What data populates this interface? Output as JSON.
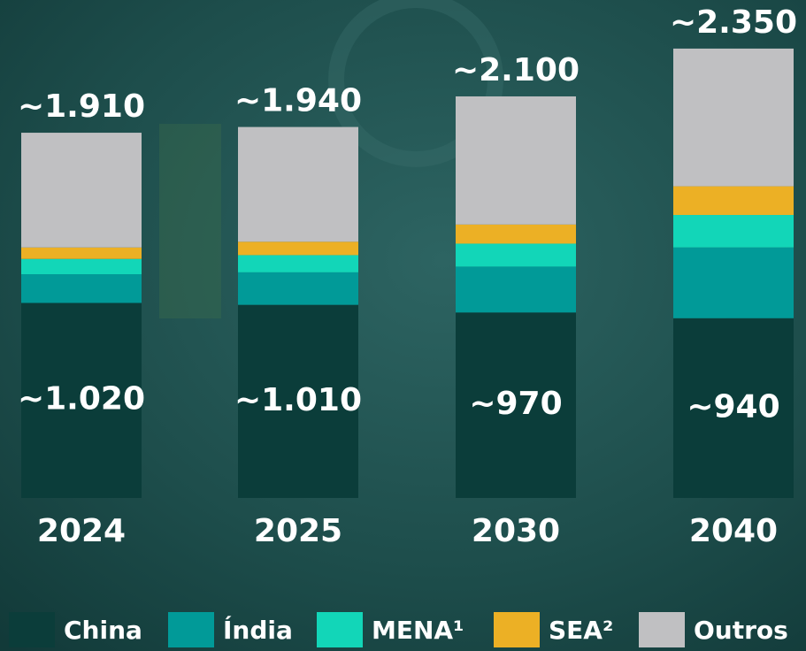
{
  "chart_data": {
    "type": "stacked-bar",
    "categories": [
      "2024",
      "2025",
      "2030",
      "2040"
    ],
    "series": [
      {
        "name": "China",
        "color": "#0b3d3a",
        "values": [
          1020,
          1010,
          970,
          940
        ],
        "value_labels": [
          "~1.020",
          "~1.010",
          "~970",
          "~940"
        ]
      },
      {
        "name": "Índia",
        "color": "#019a98",
        "values": [
          150,
          170,
          240,
          370
        ]
      },
      {
        "name": "MENA¹",
        "color": "#12d6b8",
        "values": [
          80,
          90,
          120,
          170
        ]
      },
      {
        "name": "SEA²",
        "color": "#ecb025",
        "values": [
          60,
          70,
          100,
          150
        ]
      },
      {
        "name": "Outros",
        "color": "#c0c0c2",
        "values": [
          600,
          600,
          670,
          720
        ]
      }
    ],
    "totals": [
      1910,
      1940,
      2100,
      2350
    ],
    "total_labels": [
      "~1.910",
      "~1.940",
      "~2.100",
      "~2.350"
    ]
  }
}
